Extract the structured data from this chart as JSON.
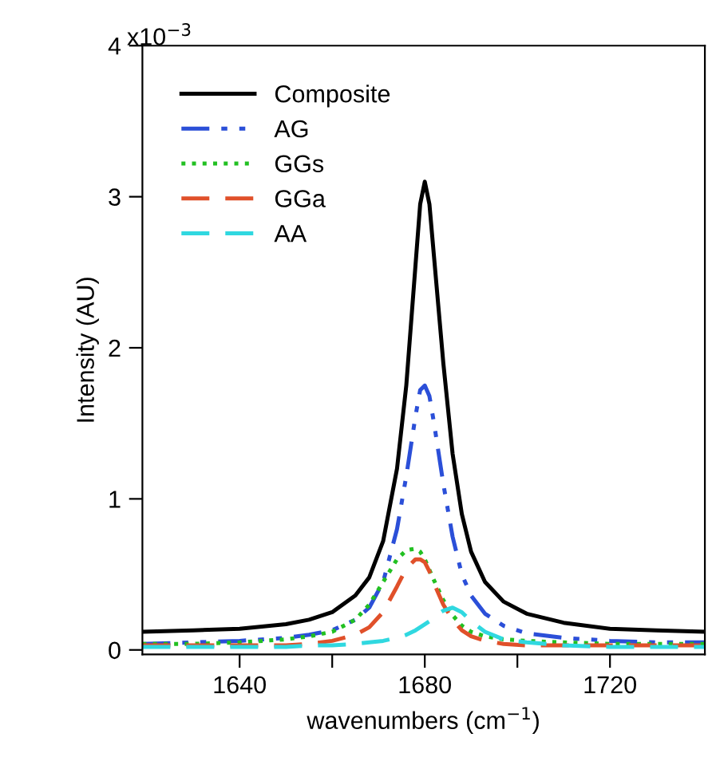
{
  "chart_data": {
    "type": "line",
    "xlabel": "wavenumbers (cm$^{−1}$)",
    "ylabel": "Intensity (AU)",
    "annotations": [
      "x10$^{−3}$"
    ],
    "x": [
      1619,
      1630,
      1640,
      1650,
      1655,
      1660,
      1665,
      1668,
      1671,
      1674,
      1676,
      1678,
      1679,
      1680,
      1681,
      1682,
      1684,
      1686,
      1688,
      1690,
      1693,
      1697,
      1702,
      1710,
      1720,
      1730,
      1740.5
    ],
    "series": [
      {
        "name": "Composite",
        "color": "#000000",
        "line_style": "solid",
        "values": [
          0.12,
          0.13,
          0.14,
          0.17,
          0.2,
          0.25,
          0.36,
          0.48,
          0.72,
          1.2,
          1.75,
          2.55,
          2.95,
          3.1,
          2.95,
          2.6,
          1.9,
          1.3,
          0.9,
          0.65,
          0.45,
          0.32,
          0.24,
          0.18,
          0.14,
          0.13,
          0.12
        ]
      },
      {
        "name": "AG",
        "color": "#2b4fd8",
        "line_style": "dashdot",
        "values": [
          0.04,
          0.05,
          0.06,
          0.08,
          0.1,
          0.13,
          0.2,
          0.28,
          0.45,
          0.8,
          1.15,
          1.55,
          1.72,
          1.75,
          1.68,
          1.5,
          1.1,
          0.75,
          0.5,
          0.36,
          0.24,
          0.16,
          0.11,
          0.08,
          0.06,
          0.05,
          0.05
        ]
      },
      {
        "name": "GGs",
        "color": "#22c022",
        "line_style": "dotted",
        "values": [
          0.04,
          0.04,
          0.05,
          0.07,
          0.09,
          0.12,
          0.2,
          0.3,
          0.45,
          0.6,
          0.66,
          0.67,
          0.65,
          0.6,
          0.53,
          0.46,
          0.33,
          0.23,
          0.16,
          0.12,
          0.09,
          0.07,
          0.06,
          0.05,
          0.04,
          0.04,
          0.04
        ]
      },
      {
        "name": "GGa",
        "color": "#e0502a",
        "line_style": "dashed",
        "values": [
          0.03,
          0.03,
          0.03,
          0.03,
          0.04,
          0.06,
          0.1,
          0.15,
          0.25,
          0.42,
          0.54,
          0.6,
          0.6,
          0.58,
          0.52,
          0.44,
          0.3,
          0.2,
          0.13,
          0.09,
          0.06,
          0.04,
          0.03,
          0.03,
          0.03,
          0.03,
          0.03
        ]
      },
      {
        "name": "AA",
        "color": "#30d8e0",
        "line_style": "dashed",
        "values": [
          0.02,
          0.02,
          0.02,
          0.02,
          0.03,
          0.03,
          0.04,
          0.05,
          0.06,
          0.08,
          0.1,
          0.13,
          0.15,
          0.17,
          0.19,
          0.22,
          0.26,
          0.28,
          0.25,
          0.19,
          0.12,
          0.07,
          0.05,
          0.03,
          0.02,
          0.02,
          0.02
        ]
      }
    ],
    "xlim": [
      1619,
      1740.5
    ],
    "xticks": [
      1640,
      {
        "value": 1660,
        "label": null
      },
      1680,
      {
        "value": 1700,
        "label": null
      },
      1720
    ],
    "ylim": [
      -0.03,
      4
    ],
    "yticks": [
      0,
      1,
      2,
      3,
      4
    ],
    "grid": false,
    "legend": "top left",
    "marker": "none"
  }
}
